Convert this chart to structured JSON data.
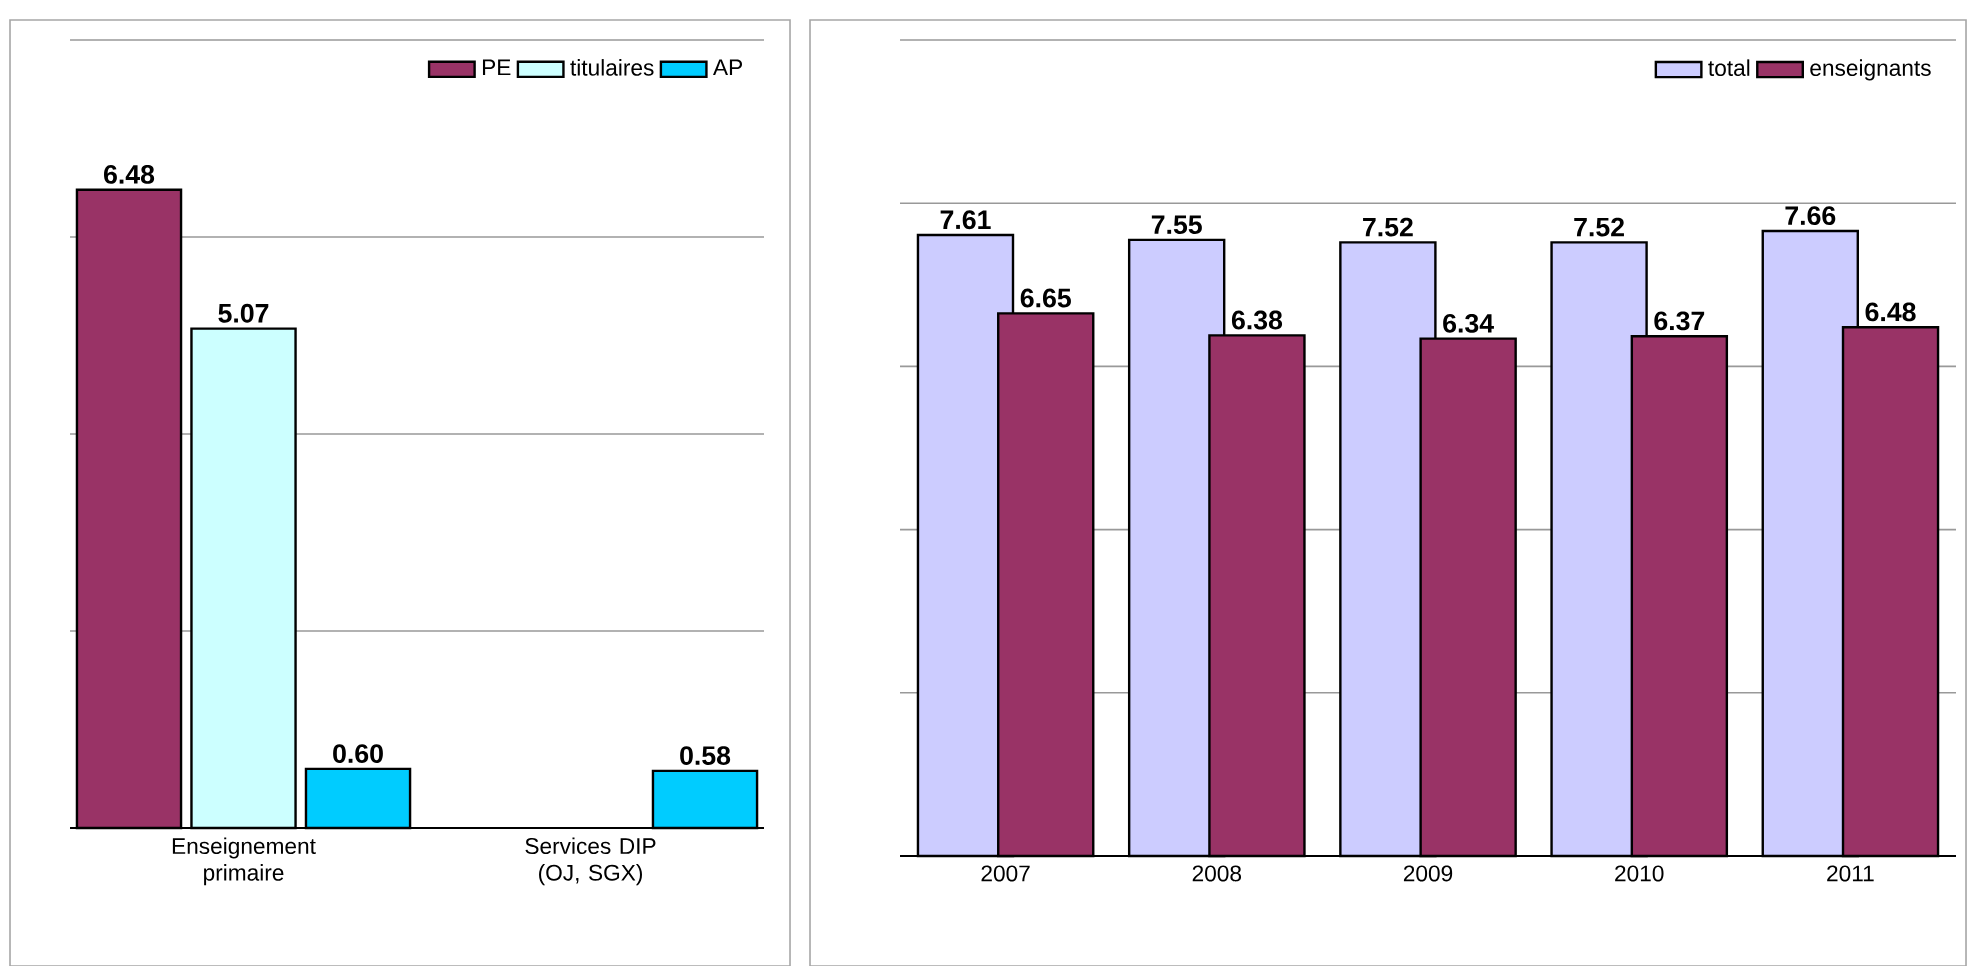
{
  "chart_data": [
    {
      "type": "bar",
      "categories": [
        "Enseignement primaire",
        "Services DIP (OJ, SGX)"
      ],
      "series": [
        {
          "name": "PE",
          "color": "#993366",
          "values": [
            6.48,
            null
          ],
          "value_labels": [
            "6.48",
            null
          ]
        },
        {
          "name": "titulaires",
          "color": "#ccffff",
          "values": [
            5.07,
            null
          ],
          "value_labels": [
            "5.07",
            null
          ]
        },
        {
          "name": "AP",
          "color": "#00ccff",
          "values": [
            0.6,
            0.58
          ],
          "value_labels": [
            "0.60",
            "0.58"
          ]
        }
      ],
      "ylim": [
        0,
        8
      ],
      "yticks": [
        {
          "value": 0,
          "label": null
        },
        {
          "value": 2,
          "label": null
        },
        {
          "value": 4,
          "label": null
        },
        {
          "value": 6,
          "label": null
        },
        {
          "value": 8,
          "label": null
        }
      ],
      "tick_labels": "x",
      "grid": "y",
      "legend": "top right"
    },
    {
      "type": "bar",
      "categories": [
        "2007",
        "2008",
        "2009",
        "2010",
        "2011"
      ],
      "series": [
        {
          "name": "total",
          "color": "#ccccff",
          "values": [
            7.61,
            7.55,
            7.52,
            7.52,
            7.66
          ],
          "value_labels": [
            "7.61",
            "7.55",
            "7.52",
            "7.52",
            "7.66"
          ]
        },
        {
          "name": "enseignants",
          "color": "#993366",
          "values": [
            6.65,
            6.38,
            6.34,
            6.37,
            6.48
          ],
          "value_labels": [
            "6.65",
            "6.38",
            "6.34",
            "6.37",
            "6.48"
          ]
        }
      ],
      "ylim": [
        0,
        10
      ],
      "yticks": [
        {
          "value": 0,
          "label": null
        },
        {
          "value": 2,
          "label": null
        },
        {
          "value": 4,
          "label": null
        },
        {
          "value": 6,
          "label": null
        },
        {
          "value": 8,
          "label": null
        },
        {
          "value": 10,
          "label": null
        }
      ],
      "tick_labels": "x",
      "grid": "y",
      "legend": "top right"
    }
  ]
}
